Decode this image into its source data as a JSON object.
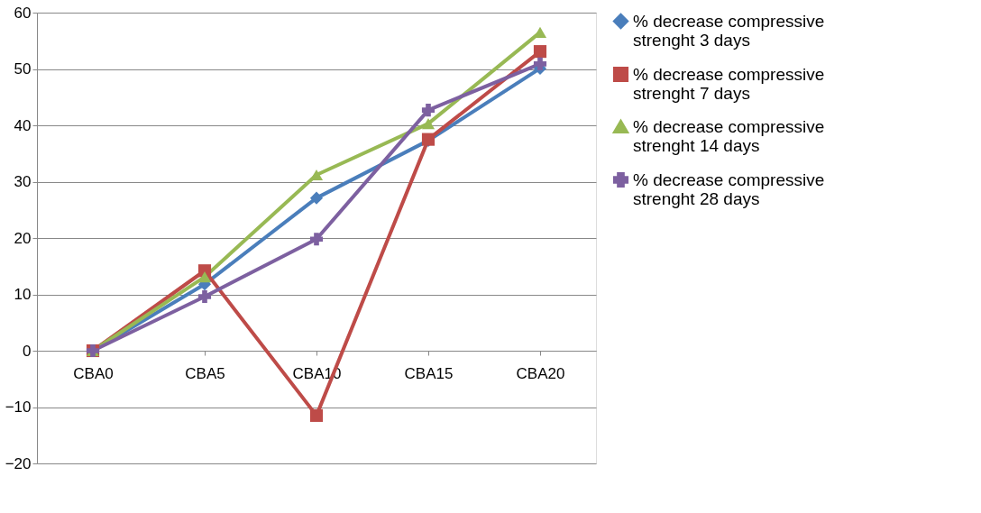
{
  "chart_data": {
    "type": "line",
    "categories": [
      "CBA0",
      "CBA5",
      "CBA10",
      "CBA15",
      "CBA20"
    ],
    "series": [
      {
        "name": "% decrease compressive strenght 3 days",
        "color": "#4a7ebb",
        "marker": "diamond",
        "values": [
          0,
          11.8,
          27.1,
          37.3,
          50.1
        ]
      },
      {
        "name": "% decrease compressive strenght 7 days",
        "color": "#be4b48",
        "marker": "square",
        "values": [
          0,
          14.2,
          -11.5,
          37.5,
          53.1
        ]
      },
      {
        "name": "% decrease compressive strenght 14 days",
        "color": "#98b954",
        "marker": "triangle",
        "values": [
          0,
          13.1,
          31.2,
          40.3,
          56.5
        ]
      },
      {
        "name": "% decrease compressive strenght 28 days",
        "color": "#7d60a0",
        "marker": "cross",
        "values": [
          0,
          9.6,
          19.8,
          42.7,
          50.9
        ]
      }
    ],
    "ylim": [
      -20,
      60
    ],
    "yticks": [
      -20,
      -10,
      0,
      10,
      20,
      30,
      40,
      50,
      60
    ],
    "grid": "y",
    "legend": "right",
    "line_style": "solid"
  }
}
